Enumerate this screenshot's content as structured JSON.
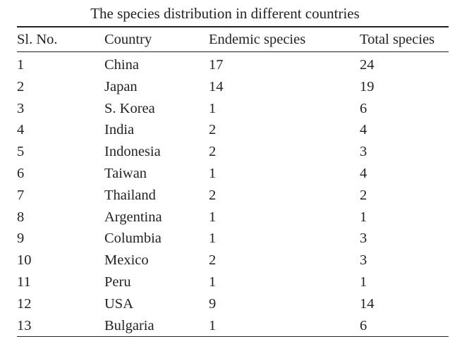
{
  "table": {
    "caption": "The species distribution in different countries",
    "headers": [
      "Sl. No.",
      "Country",
      "Endemic species",
      "Total species"
    ],
    "rows": [
      [
        "1",
        "China",
        "17",
        "24"
      ],
      [
        "2",
        "Japan",
        "14",
        "19"
      ],
      [
        "3",
        "S. Korea",
        "1",
        "6"
      ],
      [
        "4",
        "India",
        "2",
        "4"
      ],
      [
        "5",
        "Indonesia",
        "2",
        "3"
      ],
      [
        "6",
        "Taiwan",
        "1",
        "4"
      ],
      [
        "7",
        "Thailand",
        "2",
        "2"
      ],
      [
        "8",
        "Argentina",
        "1",
        "1"
      ],
      [
        "9",
        "Columbia",
        "1",
        "3"
      ],
      [
        "10",
        "Mexico",
        "2",
        "3"
      ],
      [
        "11",
        "Peru",
        "1",
        "1"
      ],
      [
        "12",
        "USA",
        "9",
        "14"
      ],
      [
        "13",
        "Bulgaria",
        "1",
        "6"
      ]
    ]
  }
}
